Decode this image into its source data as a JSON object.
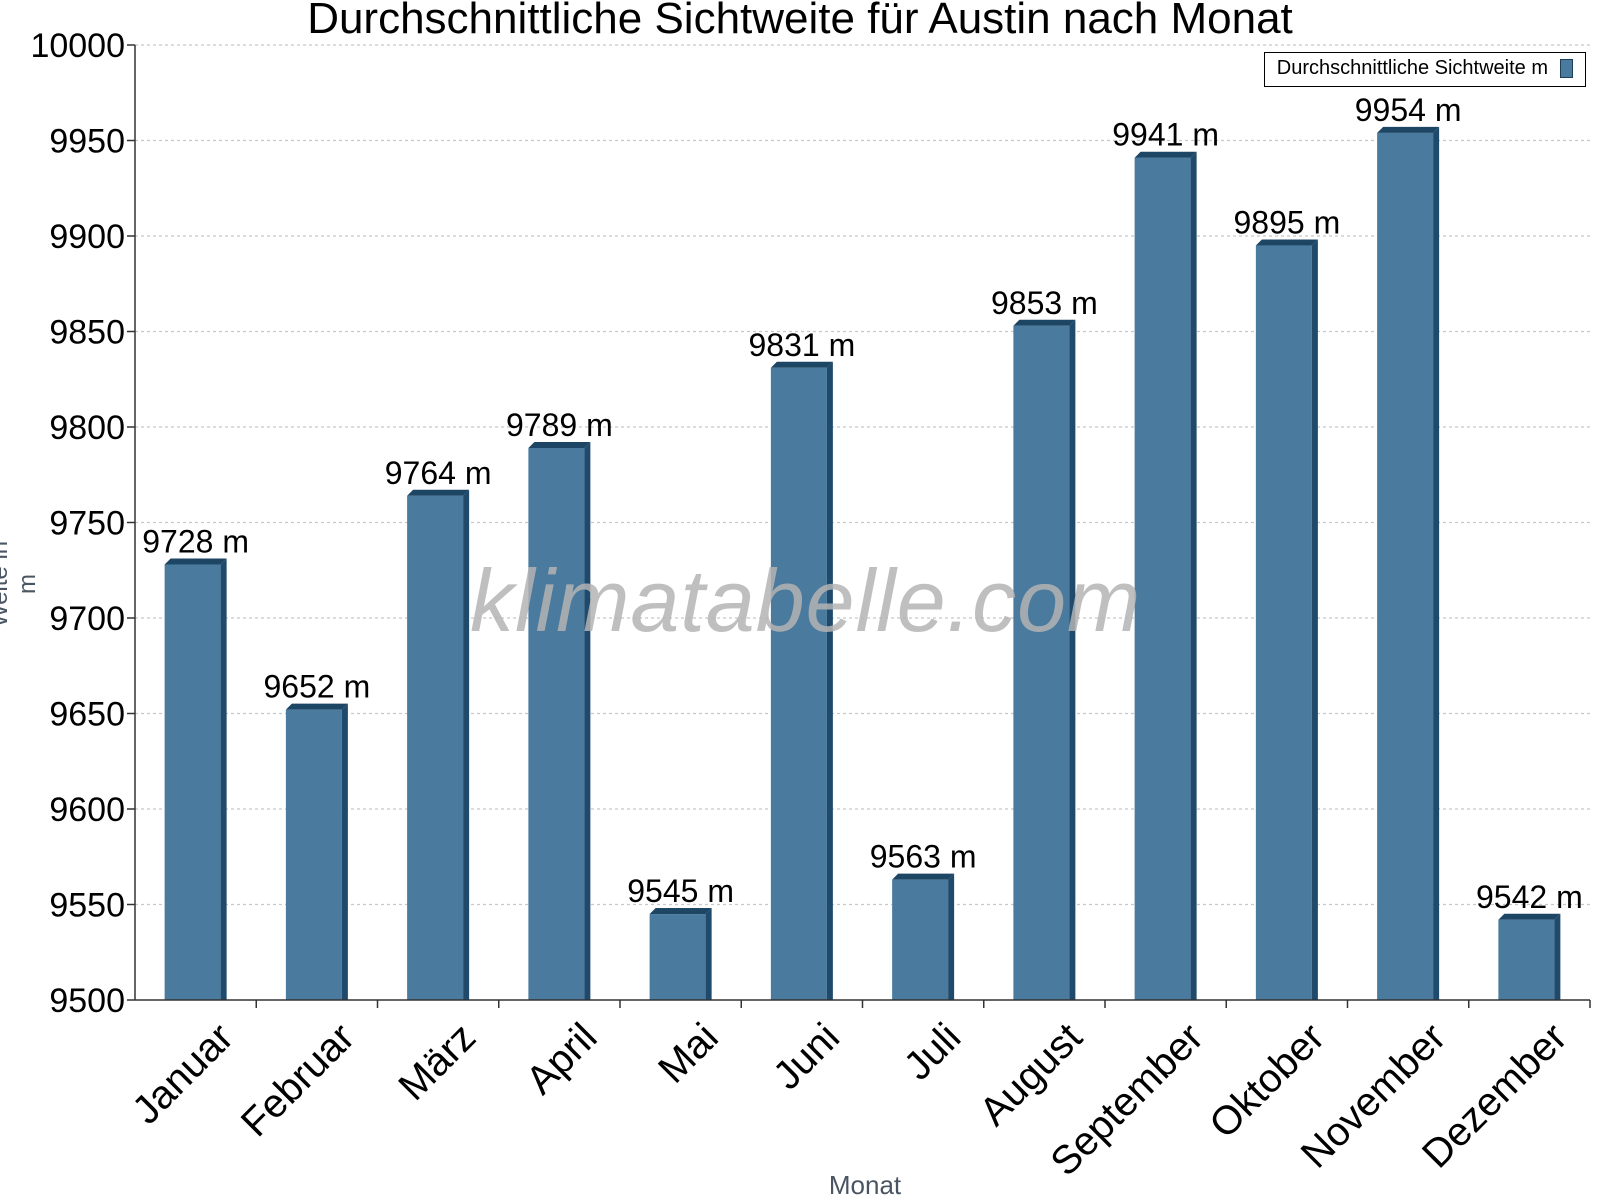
{
  "title": "Durchschnittliche Sichtweite für Austin nach Monat",
  "watermark": "klimatabelle.com",
  "chart_data": {
    "type": "bar",
    "title": "Durchschnittliche Sichtweite für Austin nach Monat",
    "xlabel": "Monat",
    "ylabel": "Weite in m",
    "ylim": [
      9500,
      10000
    ],
    "yticks": [
      9500,
      9550,
      9600,
      9650,
      9700,
      9750,
      9800,
      9850,
      9900,
      9950,
      10000
    ],
    "categories": [
      "Januar",
      "Februar",
      "März",
      "April",
      "Mai",
      "Juni",
      "Juli",
      "August",
      "September",
      "Oktober",
      "November",
      "Dezember"
    ],
    "series": [
      {
        "name": "Durchschnittliche Sichtweite m",
        "values": [
          9728,
          9652,
          9764,
          9789,
          9545,
          9831,
          9563,
          9853,
          9941,
          9895,
          9954,
          9542
        ],
        "labels": [
          "9728 m",
          "9652 m",
          "9764 m",
          "9789 m",
          "9545 m",
          "9831 m",
          "9563 m",
          "9853 m",
          "9941 m",
          "9895 m",
          "9954 m",
          "9542 m"
        ]
      }
    ],
    "grid": true,
    "legend_position": "top-right",
    "colors": {
      "bar": "#4a7a9d",
      "bar_side": "#1f4a6b",
      "bar_top": "#1d4564",
      "grid": "#c8c8c8",
      "axis": "#333333"
    }
  }
}
